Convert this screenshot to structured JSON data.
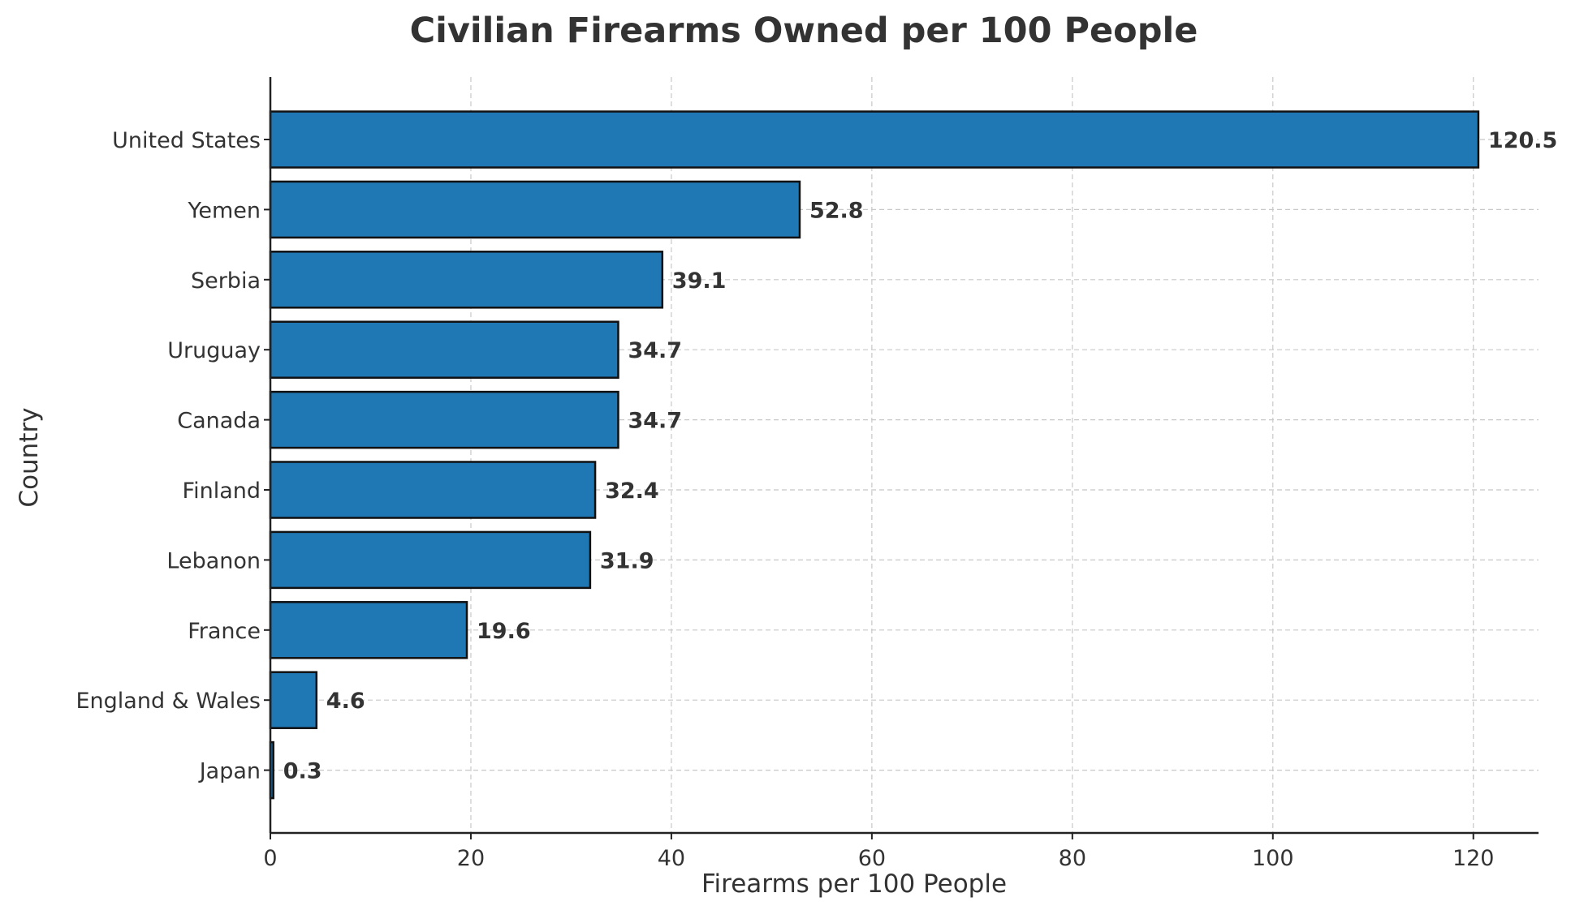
{
  "chart_data": {
    "type": "bar",
    "orientation": "horizontal",
    "title": "Civilian Firearms Owned per 100 People",
    "xlabel": "Firearms per 100 People",
    "ylabel": "Country",
    "categories": [
      "United States",
      "Yemen",
      "Serbia",
      "Uruguay",
      "Canada",
      "Finland",
      "Lebanon",
      "France",
      "England & Wales",
      "Japan"
    ],
    "values": [
      120.5,
      52.8,
      39.1,
      34.7,
      34.7,
      32.4,
      31.9,
      19.6,
      4.6,
      0.3
    ],
    "value_labels": [
      "120.5",
      "52.8",
      "39.1",
      "34.7",
      "34.7",
      "32.4",
      "31.9",
      "19.6",
      "4.6",
      "0.3"
    ],
    "xlim": [
      0,
      126.5
    ],
    "xticks": [
      0,
      20,
      40,
      60,
      80,
      100,
      120
    ],
    "grid": true,
    "bar_color": "#1f77b4",
    "bar_edge_color": "#111111"
  }
}
